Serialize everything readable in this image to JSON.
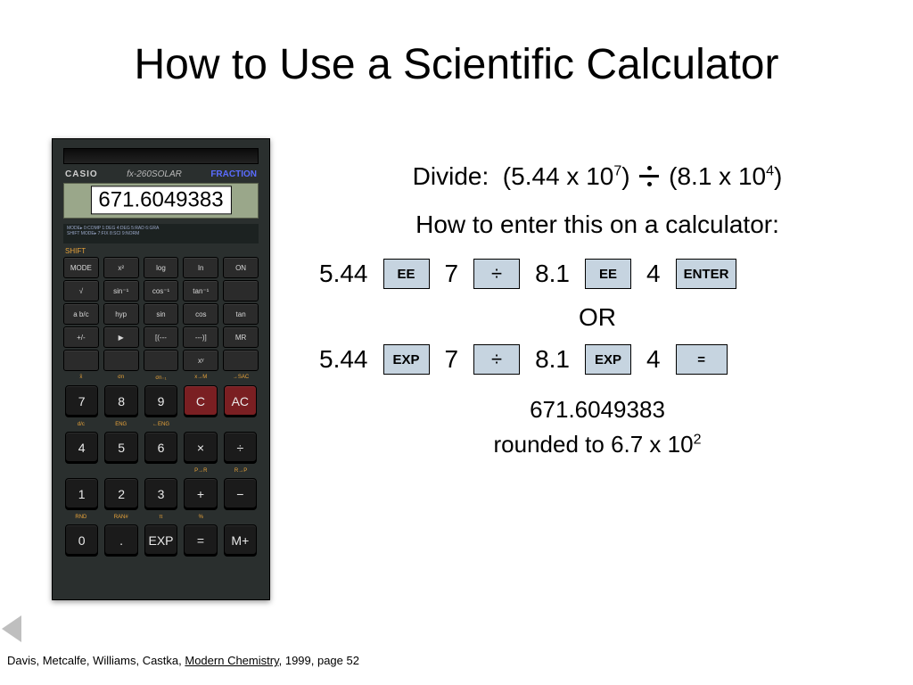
{
  "title": "How to Use a Scientific Calculator",
  "calculator": {
    "brand": "CASIO",
    "model": "fx-260SOLAR",
    "fraction_label": "FRACTION",
    "display_overlay": "671.6049383",
    "shift_label": "SHIFT",
    "body_color": "#2a2f2e",
    "lcd_color": "#9aa78a",
    "funcRows": [
      [
        "MODE",
        "x²",
        "log",
        "ln",
        "ON"
      ],
      [
        "√",
        "sin⁻¹",
        "cos⁻¹",
        "tan⁻¹",
        ""
      ],
      [
        "a b/c",
        "hyp",
        "sin",
        "cos",
        "tan"
      ],
      [
        "+/-",
        "▶",
        "[(---",
        "---)]",
        "MR"
      ],
      [
        "",
        "",
        "",
        "xʸ",
        ""
      ]
    ],
    "numRows": [
      [
        "7",
        "8",
        "9",
        "C",
        "AC"
      ],
      [
        "4",
        "5",
        "6",
        "×",
        "÷"
      ],
      [
        "1",
        "2",
        "3",
        "+",
        "−"
      ],
      [
        "0",
        ".",
        "EXP",
        "=",
        "M+"
      ]
    ],
    "numSup": [
      [
        "x̄",
        "σn",
        "σn₋₁",
        "x→M",
        "→SAC"
      ],
      [
        "d/c",
        "ENG",
        "←ENG",
        "",
        ""
      ],
      [
        "",
        "",
        "",
        "P→R",
        "R→P"
      ],
      [
        "RND",
        "RAN#",
        "π",
        "%",
        ""
      ]
    ],
    "red_keys": [
      "C",
      "AC"
    ]
  },
  "problem": {
    "label": "Divide:",
    "a_mantissa": "5.44",
    "a_exp": "7",
    "b_mantissa": "8.1",
    "b_exp": "4",
    "howto": "How to enter this on a calculator:",
    "seq1": {
      "v1": "5.44",
      "k1": "EE",
      "v2": "7",
      "op": "÷",
      "v3": "8.1",
      "k2": "EE",
      "v4": "4",
      "k3": "ENTER"
    },
    "or": "OR",
    "seq2": {
      "v1": "5.44",
      "k1": "EXP",
      "v2": "7",
      "op": "÷",
      "v3": "8.1",
      "k2": "EXP",
      "v4": "4",
      "k3": "="
    },
    "answer": "671.6049383",
    "rounded_prefix": "rounded to 6.7 x 10",
    "rounded_exp": "2"
  },
  "button_style": {
    "bg": "#c6d4e0",
    "border": "#000000"
  },
  "citation": {
    "authors": "Davis, Metcalfe, Williams, Castka, ",
    "title": "Modern Chemistry",
    "rest": ", 1999,  page 52"
  }
}
